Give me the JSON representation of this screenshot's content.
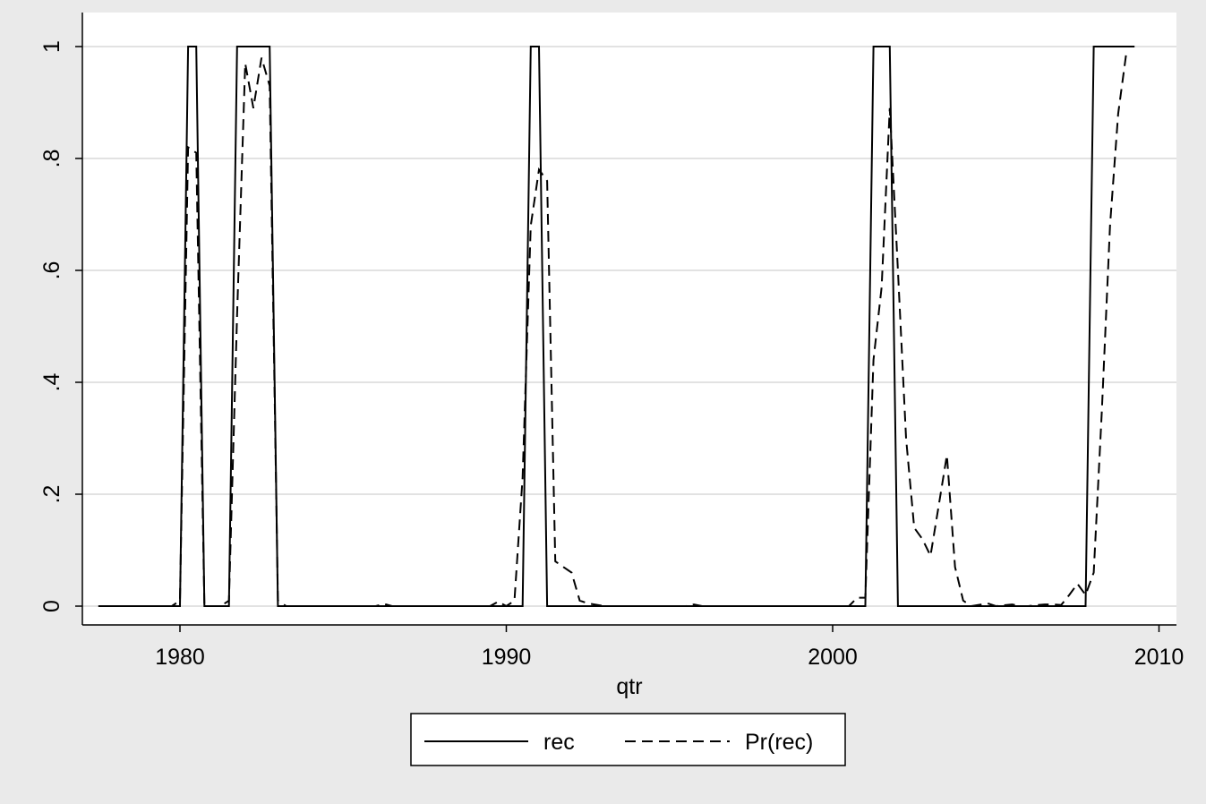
{
  "chart_data": {
    "type": "line",
    "xlabel": "qtr",
    "ylabel": "",
    "xlim": [
      1977.25,
      2010.5
    ],
    "ylim": [
      0,
      1
    ],
    "x_ticks": [
      1980,
      1990,
      2000,
      2010
    ],
    "y_ticks": [
      0,
      0.2,
      0.4,
      0.6,
      0.8,
      1
    ],
    "y_tick_labels": [
      "0",
      ".2",
      ".4",
      ".6",
      ".8",
      "1"
    ],
    "grid": true,
    "legend_position": "bottom",
    "series": [
      {
        "name": "rec",
        "style": "solid",
        "color": "#000000",
        "points": [
          [
            1977.5,
            0
          ],
          [
            1980.0,
            0
          ],
          [
            1980.25,
            1
          ],
          [
            1980.5,
            1
          ],
          [
            1980.75,
            0
          ],
          [
            1981.5,
            0
          ],
          [
            1981.75,
            1
          ],
          [
            1982.0,
            1
          ],
          [
            1982.25,
            1
          ],
          [
            1982.5,
            1
          ],
          [
            1982.75,
            1
          ],
          [
            1983.0,
            0
          ],
          [
            1990.5,
            0
          ],
          [
            1990.75,
            1
          ],
          [
            1991.0,
            1
          ],
          [
            1991.25,
            0
          ],
          [
            2001.0,
            0
          ],
          [
            2001.25,
            1
          ],
          [
            2001.5,
            1
          ],
          [
            2001.75,
            1
          ],
          [
            2002.0,
            0
          ],
          [
            2007.75,
            0
          ],
          [
            2008.0,
            1
          ],
          [
            2009.25,
            1
          ]
        ]
      },
      {
        "name": "Pr(rec)",
        "style": "dashed",
        "color": "#000000",
        "points": [
          [
            1977.5,
            0
          ],
          [
            1979.75,
            0
          ],
          [
            1980.0,
            0.01
          ],
          [
            1980.25,
            0.82
          ],
          [
            1980.5,
            0.81
          ],
          [
            1980.75,
            0
          ],
          [
            1981.25,
            0
          ],
          [
            1981.5,
            0.01
          ],
          [
            1981.75,
            0.52
          ],
          [
            1982.0,
            0.97
          ],
          [
            1982.25,
            0.89
          ],
          [
            1982.5,
            0.98
          ],
          [
            1982.75,
            0.93
          ],
          [
            1983.0,
            0.01
          ],
          [
            1983.25,
            0
          ],
          [
            1986.0,
            0
          ],
          [
            1986.25,
            0.004
          ],
          [
            1986.5,
            0
          ],
          [
            1989.5,
            0
          ],
          [
            1989.75,
            0.008
          ],
          [
            1990.0,
            0
          ],
          [
            1990.25,
            0.01
          ],
          [
            1990.5,
            0.23
          ],
          [
            1990.75,
            0.68
          ],
          [
            1991.0,
            0.78
          ],
          [
            1991.25,
            0.76
          ],
          [
            1991.5,
            0.08
          ],
          [
            1991.75,
            0.07
          ],
          [
            1992.0,
            0.06
          ],
          [
            1992.25,
            0.01
          ],
          [
            1992.5,
            0.005
          ],
          [
            1993.0,
            0
          ],
          [
            1995.5,
            0
          ],
          [
            1995.75,
            0.003
          ],
          [
            1996.0,
            0
          ],
          [
            2000.5,
            0
          ],
          [
            2000.75,
            0.015
          ],
          [
            2001.0,
            0.015
          ],
          [
            2001.25,
            0.44
          ],
          [
            2001.5,
            0.57
          ],
          [
            2001.75,
            0.89
          ],
          [
            2002.0,
            0.6
          ],
          [
            2002.25,
            0.3
          ],
          [
            2002.5,
            0.14
          ],
          [
            2002.75,
            0.12
          ],
          [
            2003.0,
            0.09
          ],
          [
            2003.25,
            0.18
          ],
          [
            2003.5,
            0.27
          ],
          [
            2003.75,
            0.07
          ],
          [
            2004.0,
            0.01
          ],
          [
            2004.25,
            0
          ],
          [
            2004.75,
            0.005
          ],
          [
            2005.0,
            0
          ],
          [
            2005.5,
            0.003
          ],
          [
            2005.75,
            0
          ],
          [
            2006.0,
            0
          ],
          [
            2006.25,
            0.002
          ],
          [
            2006.5,
            0.003
          ],
          [
            2006.75,
            0.003
          ],
          [
            2007.0,
            0.002
          ],
          [
            2007.25,
            0.02
          ],
          [
            2007.5,
            0.04
          ],
          [
            2007.75,
            0.02
          ],
          [
            2008.0,
            0.06
          ],
          [
            2008.25,
            0.35
          ],
          [
            2008.5,
            0.68
          ],
          [
            2008.75,
            0.88
          ],
          [
            2009.0,
            0.99
          ]
        ]
      }
    ]
  }
}
